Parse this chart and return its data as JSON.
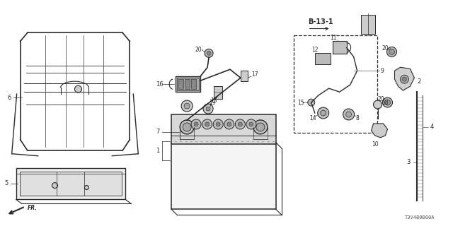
{
  "background_color": "#ffffff",
  "line_color": "#2a2a2a",
  "diagram_code": "T3V4B0B00A",
  "ref_box_label": "B-13-1",
  "fig_w": 6.4,
  "fig_h": 3.2,
  "dpi": 100
}
